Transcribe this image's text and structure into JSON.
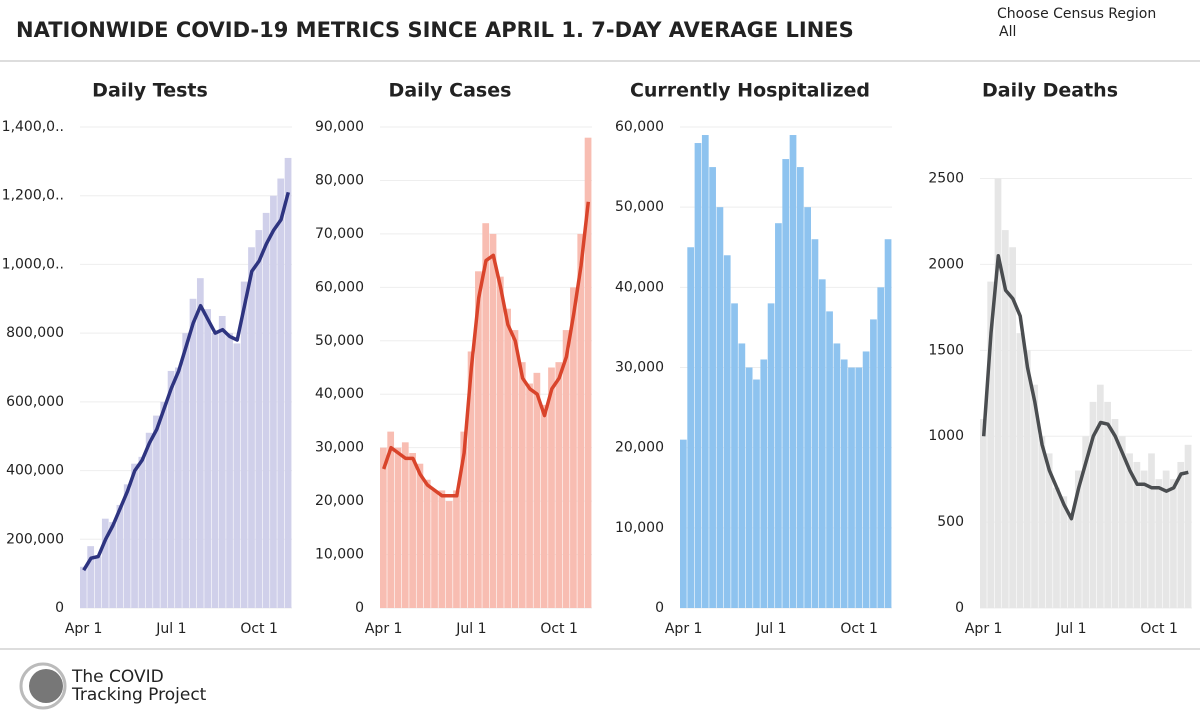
{
  "header": {
    "title": "NATIONWIDE COVID-19 METRICS SINCE APRIL 1. 7-DAY AVERAGE LINES"
  },
  "filter": {
    "label": "Choose Census Region",
    "value": "All"
  },
  "footer": {
    "logo_lines": [
      "The COVID",
      "Tracking Project"
    ]
  },
  "chart_data": [
    {
      "type": "bar_line",
      "title": "Daily Tests",
      "categories": [
        "Apr 1",
        "Apr 8",
        "Apr 15",
        "Apr 22",
        "May 1",
        "May 8",
        "May 15",
        "May 22",
        "Jun 1",
        "Jun 8",
        "Jun 15",
        "Jun 22",
        "Jul 1",
        "Jul 8",
        "Jul 15",
        "Jul 22",
        "Aug 1",
        "Aug 8",
        "Aug 15",
        "Aug 22",
        "Sep 1",
        "Sep 8",
        "Sep 15",
        "Sep 22",
        "Oct 1",
        "Oct 8",
        "Oct 15",
        "Oct 22",
        "Oct 29"
      ],
      "xticks": [
        "Apr 1",
        "Jul 1",
        "Oct 1"
      ],
      "series": [
        {
          "kind": "bar",
          "color": "#d0d0ea",
          "values": [
            120000,
            180000,
            150000,
            260000,
            250000,
            300000,
            360000,
            420000,
            440000,
            510000,
            560000,
            600000,
            690000,
            700000,
            800000,
            900000,
            960000,
            870000,
            800000,
            850000,
            800000,
            770000,
            950000,
            1050000,
            1100000,
            1150000,
            1200000,
            1250000,
            1310000
          ]
        },
        {
          "kind": "line",
          "color": "#2e3480",
          "values": [
            110000,
            145000,
            150000,
            200000,
            240000,
            290000,
            340000,
            400000,
            430000,
            480000,
            520000,
            580000,
            640000,
            690000,
            760000,
            830000,
            880000,
            840000,
            800000,
            810000,
            790000,
            780000,
            880000,
            980000,
            1010000,
            1060000,
            1100000,
            1130000,
            1210000
          ]
        }
      ],
      "ylim": [
        0,
        1400000
      ],
      "yticks": [
        0,
        {
          "value": 200000,
          "label": "200,000"
        },
        {
          "value": 400000,
          "label": "400,000"
        },
        {
          "value": 600000,
          "label": "600,000"
        },
        {
          "value": 800000,
          "label": "800,000"
        },
        {
          "value": 1000000,
          "label": "1,000,0.."
        },
        {
          "value": 1200000,
          "label": "1,200,0.."
        },
        {
          "value": 1400000,
          "label": "1,400,0.."
        }
      ]
    },
    {
      "type": "bar_line",
      "title": "Daily Cases",
      "categories": [
        "Apr 1",
        "Apr 8",
        "Apr 15",
        "Apr 22",
        "May 1",
        "May 8",
        "May 15",
        "May 22",
        "Jun 1",
        "Jun 8",
        "Jun 15",
        "Jun 22",
        "Jul 1",
        "Jul 8",
        "Jul 15",
        "Jul 22",
        "Aug 1",
        "Aug 8",
        "Aug 15",
        "Aug 22",
        "Sep 1",
        "Sep 8",
        "Sep 15",
        "Sep 22",
        "Oct 1",
        "Oct 8",
        "Oct 15",
        "Oct 22",
        "Oct 29"
      ],
      "xticks": [
        "Apr 1",
        "Jul 1",
        "Oct 1"
      ],
      "series": [
        {
          "kind": "bar",
          "color": "#f8bdb2",
          "values": [
            30000,
            33000,
            30000,
            31000,
            29000,
            27000,
            24000,
            22000,
            22000,
            20000,
            22000,
            33000,
            48000,
            63000,
            72000,
            70000,
            62000,
            56000,
            52000,
            46000,
            42000,
            44000,
            38000,
            45000,
            46000,
            52000,
            60000,
            70000,
            88000
          ]
        },
        {
          "kind": "line",
          "color": "#d9442b",
          "values": [
            26000,
            30000,
            29000,
            28000,
            28000,
            25000,
            23000,
            22000,
            21000,
            21000,
            21000,
            29000,
            45000,
            58000,
            65000,
            66000,
            60000,
            53000,
            50000,
            43000,
            41000,
            40000,
            36000,
            41000,
            43000,
            47000,
            55000,
            64000,
            76000
          ]
        }
      ],
      "ylim": [
        0,
        90000
      ],
      "yticks": [
        0,
        {
          "value": 10000,
          "label": "10,000"
        },
        {
          "value": 20000,
          "label": "20,000"
        },
        {
          "value": 30000,
          "label": "30,000"
        },
        {
          "value": 40000,
          "label": "40,000"
        },
        {
          "value": 50000,
          "label": "50,000"
        },
        {
          "value": 60000,
          "label": "60,000"
        },
        {
          "value": 70000,
          "label": "70,000"
        },
        {
          "value": 80000,
          "label": "80,000"
        },
        {
          "value": 90000,
          "label": "90,000"
        }
      ]
    },
    {
      "type": "bar_line",
      "title": "Currently Hospitalized",
      "categories": [
        "Apr 1",
        "Apr 8",
        "Apr 15",
        "Apr 22",
        "May 1",
        "May 8",
        "May 15",
        "May 22",
        "Jun 1",
        "Jun 8",
        "Jun 15",
        "Jun 22",
        "Jul 1",
        "Jul 8",
        "Jul 15",
        "Jul 22",
        "Aug 1",
        "Aug 8",
        "Aug 15",
        "Aug 22",
        "Sep 1",
        "Sep 8",
        "Sep 15",
        "Sep 22",
        "Oct 1",
        "Oct 8",
        "Oct 15",
        "Oct 22",
        "Oct 29"
      ],
      "xticks": [
        "Apr 1",
        "Jul 1",
        "Oct 1"
      ],
      "series": [
        {
          "kind": "bar",
          "color": "#8ec3ef",
          "values": [
            21000,
            45000,
            58000,
            59000,
            55000,
            50000,
            44000,
            38000,
            33000,
            30000,
            28500,
            31000,
            38000,
            48000,
            56000,
            59000,
            55000,
            50000,
            46000,
            41000,
            37000,
            33000,
            31000,
            30000,
            30000,
            32000,
            36000,
            40000,
            46000
          ]
        }
      ],
      "ylim": [
        0,
        60000
      ],
      "yticks": [
        0,
        {
          "value": 10000,
          "label": "10,000"
        },
        {
          "value": 20000,
          "label": "20,000"
        },
        {
          "value": 30000,
          "label": "30,000"
        },
        {
          "value": 40000,
          "label": "40,000"
        },
        {
          "value": 50000,
          "label": "50,000"
        },
        {
          "value": 60000,
          "label": "60,000"
        }
      ]
    },
    {
      "type": "bar_line",
      "title": "Daily Deaths",
      "categories": [
        "Apr 1",
        "Apr 8",
        "Apr 15",
        "Apr 22",
        "May 1",
        "May 8",
        "May 15",
        "May 22",
        "Jun 1",
        "Jun 8",
        "Jun 15",
        "Jun 22",
        "Jul 1",
        "Jul 8",
        "Jul 15",
        "Jul 22",
        "Aug 1",
        "Aug 8",
        "Aug 15",
        "Aug 22",
        "Sep 1",
        "Sep 8",
        "Sep 15",
        "Sep 22",
        "Oct 1",
        "Oct 8",
        "Oct 15",
        "Oct 22",
        "Oct 29"
      ],
      "xticks": [
        "Apr 1",
        "Jul 1",
        "Oct 1"
      ],
      "series": [
        {
          "kind": "bar",
          "color": "#e6e6e6",
          "values": [
            1100,
            1900,
            2500,
            2200,
            2100,
            1600,
            1500,
            1300,
            1000,
            900,
            700,
            650,
            550,
            800,
            1000,
            1200,
            1300,
            1200,
            1100,
            1000,
            900,
            850,
            800,
            900,
            750,
            800,
            750,
            850,
            950
          ]
        },
        {
          "kind": "line",
          "color": "#4a4d50",
          "values": [
            1000,
            1600,
            2050,
            1850,
            1800,
            1700,
            1400,
            1200,
            950,
            800,
            700,
            600,
            520,
            700,
            850,
            1000,
            1080,
            1070,
            1000,
            900,
            800,
            720,
            720,
            700,
            700,
            680,
            700,
            780,
            790
          ]
        }
      ],
      "ylim": [
        0,
        2800
      ],
      "yticks": [
        0,
        500,
        1000,
        1500,
        2000,
        2500
      ]
    }
  ]
}
